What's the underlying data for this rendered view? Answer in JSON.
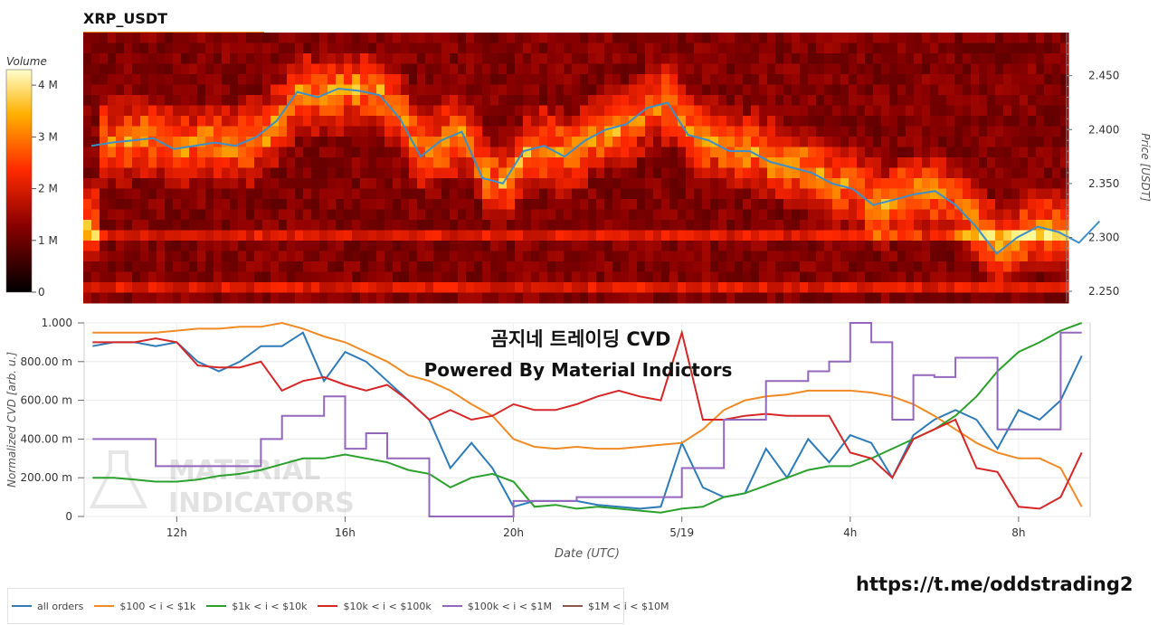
{
  "title": "XRP_USDT",
  "watermark_title": "곰지네 트레이딩 CVD",
  "watermark_subtitle": "Powered By Material Indictors",
  "watermark_logo_text": [
    "MATERIAL",
    "INDICATORS"
  ],
  "footer_link": "https://t.me/oddstrading2",
  "colors": {
    "all_orders": "#2e7bb8",
    "r100_1k": "#f08a24",
    "r1k_10k": "#2ca02c",
    "r10k_100k": "#d62728",
    "r100k_1M": "#9467bd",
    "r1M_10M": "#8c564b",
    "price_line": "#3d8fc9"
  },
  "chart_data": [
    {
      "type": "heatmap",
      "title": "XRP_USDT",
      "colorbar_label": "Volume",
      "colorbar_ticks": [
        "0",
        "1 M",
        "2 M",
        "3 M",
        "4 M"
      ],
      "colorbar_values": [
        0,
        1000000,
        2000000,
        3000000,
        4000000
      ],
      "ylabel": "Price [USDT]",
      "y_ticks": [
        "2.250",
        "2.300",
        "2.350",
        "2.400",
        "2.450"
      ],
      "y_tick_values": [
        2.25,
        2.3,
        2.35,
        2.4,
        2.45
      ],
      "ylim": [
        2.24,
        2.49
      ],
      "price_series": {
        "x_hours": [
          10,
          10.5,
          11,
          11.5,
          12,
          12.5,
          13,
          13.5,
          14,
          14.5,
          15,
          15.5,
          16,
          16.5,
          17,
          17.5,
          18,
          18.5,
          19,
          19.5,
          20,
          20.5,
          21,
          21.5,
          22,
          22.5,
          23,
          23.5,
          24,
          24.5,
          25,
          25.5,
          26,
          26.5,
          27,
          27.5,
          28,
          28.5,
          29,
          29.5,
          30,
          30.5,
          31,
          31.5,
          32,
          32.5,
          33,
          33.5,
          34,
          34.5
        ],
        "y": [
          2.385,
          2.388,
          2.39,
          2.392,
          2.382,
          2.385,
          2.388,
          2.385,
          2.393,
          2.408,
          2.435,
          2.43,
          2.438,
          2.436,
          2.432,
          2.41,
          2.375,
          2.39,
          2.398,
          2.355,
          2.35,
          2.38,
          2.385,
          2.375,
          2.39,
          2.4,
          2.405,
          2.42,
          2.425,
          2.395,
          2.39,
          2.38,
          2.38,
          2.37,
          2.365,
          2.36,
          2.35,
          2.345,
          2.33,
          2.335,
          2.34,
          2.343,
          2.33,
          2.31,
          2.285,
          2.3,
          2.31,
          2.305,
          2.295,
          2.315
        ]
      }
    },
    {
      "type": "line",
      "xlabel": "Date (UTC)",
      "ylabel": "Normalized CVD [arb. u.]",
      "x_ticks": [
        "12h",
        "16h",
        "20h",
        "5/19",
        "4h",
        "8h"
      ],
      "x_tick_hours": [
        12,
        16,
        20,
        24,
        28,
        32
      ],
      "xlim_hours": [
        9.8,
        33.7
      ],
      "y_ticks": [
        "0",
        "200.00 m",
        "400.00 m",
        "600.00 m",
        "800.00 m",
        "1.000"
      ],
      "y_tick_values": [
        0,
        0.2,
        0.4,
        0.6,
        0.8,
        1.0
      ],
      "ylim": [
        0,
        1.0
      ],
      "x_hours": [
        10,
        10.5,
        11,
        11.5,
        12,
        12.5,
        13,
        13.5,
        14,
        14.5,
        15,
        15.5,
        16,
        16.5,
        17,
        17.5,
        18,
        18.5,
        19,
        19.5,
        20,
        20.5,
        21,
        21.5,
        22,
        22.5,
        23,
        23.5,
        24,
        24.5,
        25,
        25.5,
        26,
        26.5,
        27,
        27.5,
        28,
        28.5,
        29,
        29.5,
        30,
        30.5,
        31,
        31.5,
        32,
        32.5,
        33,
        33.5
      ],
      "series": [
        {
          "name": "all orders",
          "color_key": "all_orders",
          "values": [
            0.88,
            0.9,
            0.9,
            0.88,
            0.9,
            0.8,
            0.75,
            0.8,
            0.88,
            0.88,
            0.95,
            0.7,
            0.85,
            0.8,
            0.7,
            0.6,
            0.5,
            0.25,
            0.38,
            0.25,
            0.05,
            0.08,
            0.08,
            0.08,
            0.06,
            0.05,
            0.04,
            0.05,
            0.38,
            0.15,
            0.1,
            0.12,
            0.35,
            0.2,
            0.4,
            0.28,
            0.42,
            0.38,
            0.2,
            0.42,
            0.5,
            0.55,
            0.5,
            0.35,
            0.55,
            0.5,
            0.6,
            0.83
          ]
        },
        {
          "name": "$100 < i < $1k",
          "color_key": "r100_1k",
          "values": [
            0.95,
            0.95,
            0.95,
            0.95,
            0.96,
            0.97,
            0.97,
            0.98,
            0.98,
            1.0,
            0.97,
            0.93,
            0.9,
            0.85,
            0.8,
            0.73,
            0.7,
            0.65,
            0.58,
            0.52,
            0.4,
            0.36,
            0.35,
            0.36,
            0.35,
            0.35,
            0.36,
            0.37,
            0.38,
            0.45,
            0.55,
            0.6,
            0.62,
            0.63,
            0.65,
            0.65,
            0.65,
            0.64,
            0.62,
            0.58,
            0.52,
            0.45,
            0.38,
            0.33,
            0.3,
            0.3,
            0.25,
            0.05
          ]
        },
        {
          "name": "$1k < i < $10k",
          "color_key": "r1k_10k",
          "values": [
            0.2,
            0.2,
            0.19,
            0.18,
            0.18,
            0.19,
            0.21,
            0.22,
            0.24,
            0.27,
            0.3,
            0.3,
            0.32,
            0.3,
            0.28,
            0.24,
            0.22,
            0.15,
            0.2,
            0.22,
            0.18,
            0.05,
            0.06,
            0.04,
            0.05,
            0.04,
            0.03,
            0.02,
            0.04,
            0.05,
            0.1,
            0.12,
            0.16,
            0.2,
            0.24,
            0.26,
            0.26,
            0.3,
            0.35,
            0.4,
            0.45,
            0.52,
            0.62,
            0.75,
            0.85,
            0.9,
            0.96,
            1.0
          ]
        },
        {
          "name": "$10k < i < $100k",
          "color_key": "r10k_100k",
          "values": [
            0.9,
            0.9,
            0.9,
            0.92,
            0.9,
            0.78,
            0.77,
            0.77,
            0.8,
            0.65,
            0.7,
            0.72,
            0.68,
            0.65,
            0.68,
            0.6,
            0.5,
            0.55,
            0.5,
            0.52,
            0.58,
            0.55,
            0.55,
            0.58,
            0.62,
            0.65,
            0.62,
            0.6,
            0.95,
            0.5,
            0.5,
            0.52,
            0.53,
            0.52,
            0.52,
            0.52,
            0.33,
            0.3,
            0.2,
            0.4,
            0.45,
            0.5,
            0.25,
            0.23,
            0.05,
            0.04,
            0.1,
            0.33
          ]
        },
        {
          "name": "$100k < i < $1M",
          "color_key": "r100k_1M",
          "values": [
            0.4,
            0.4,
            0.4,
            0.26,
            0.26,
            0.26,
            0.26,
            0.26,
            0.4,
            0.52,
            0.52,
            0.62,
            0.35,
            0.43,
            0.3,
            0.3,
            0.0,
            0.0,
            0.0,
            0.0,
            0.08,
            0.08,
            0.08,
            0.1,
            0.1,
            0.1,
            0.1,
            0.1,
            0.25,
            0.25,
            0.5,
            0.5,
            0.7,
            0.7,
            0.75,
            0.8,
            1.0,
            0.9,
            0.5,
            0.73,
            0.72,
            0.82,
            0.82,
            0.45,
            0.45,
            0.45,
            0.95,
            0.95
          ]
        },
        {
          "name": "$1M < i < $10M",
          "color_key": "r1M_10M",
          "values": []
        }
      ]
    }
  ]
}
